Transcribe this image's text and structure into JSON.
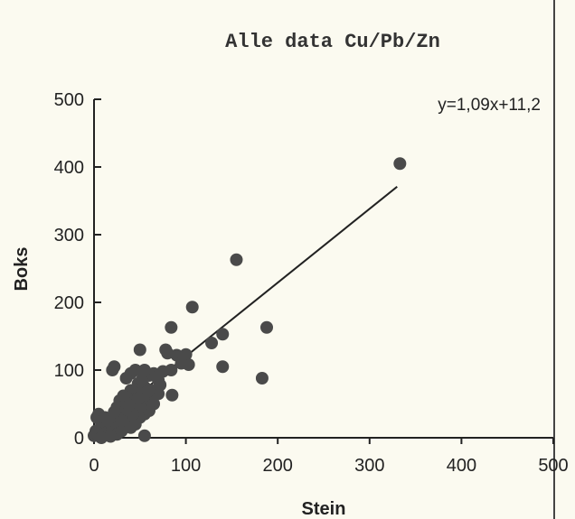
{
  "chart_data": {
    "type": "scatter",
    "title": "Alle data Cu/Pb/Zn",
    "xlabel": "Stein",
    "ylabel": "Boks",
    "xlim": [
      0,
      500
    ],
    "ylim": [
      0,
      500
    ],
    "xticks": [
      0,
      100,
      200,
      300,
      400,
      500
    ],
    "yticks": [
      0,
      100,
      200,
      300,
      400,
      500
    ],
    "grid": false,
    "annotation": "y=1,09x+11,2",
    "regression": {
      "slope": 1.09,
      "intercept": 11.2,
      "x_range": [
        0,
        330
      ]
    },
    "points": [
      [
        333,
        405
      ],
      [
        155,
        263
      ],
      [
        188,
        163
      ],
      [
        107,
        193
      ],
      [
        84,
        163
      ],
      [
        183,
        88
      ],
      [
        140,
        105
      ],
      [
        140,
        153
      ],
      [
        128,
        140
      ],
      [
        100,
        123
      ],
      [
        90,
        122
      ],
      [
        78,
        130
      ],
      [
        80,
        125
      ],
      [
        50,
        130
      ],
      [
        103,
        108
      ],
      [
        95,
        110
      ],
      [
        84,
        100
      ],
      [
        75,
        98
      ],
      [
        65,
        95
      ],
      [
        85,
        63
      ],
      [
        70,
        85
      ],
      [
        60,
        92
      ],
      [
        55,
        100
      ],
      [
        45,
        100
      ],
      [
        40,
        95
      ],
      [
        20,
        100
      ],
      [
        22,
        105
      ],
      [
        35,
        88
      ],
      [
        48,
        80
      ],
      [
        55,
        75
      ],
      [
        62,
        70
      ],
      [
        70,
        65
      ],
      [
        72,
        78
      ],
      [
        50,
        65
      ],
      [
        40,
        70
      ],
      [
        35,
        60
      ],
      [
        28,
        55
      ],
      [
        25,
        45
      ],
      [
        35,
        50
      ],
      [
        45,
        55
      ],
      [
        55,
        55
      ],
      [
        60,
        60
      ],
      [
        65,
        50
      ],
      [
        45,
        45
      ],
      [
        38,
        40
      ],
      [
        30,
        35
      ],
      [
        25,
        30
      ],
      [
        20,
        28
      ],
      [
        18,
        22
      ],
      [
        12,
        15
      ],
      [
        10,
        10
      ],
      [
        8,
        20
      ],
      [
        5,
        35
      ],
      [
        3,
        30
      ],
      [
        2,
        10
      ],
      [
        0,
        3
      ],
      [
        5,
        3
      ],
      [
        10,
        5
      ],
      [
        15,
        8
      ],
      [
        20,
        12
      ],
      [
        28,
        18
      ],
      [
        35,
        22
      ],
      [
        42,
        25
      ],
      [
        50,
        30
      ],
      [
        55,
        35
      ],
      [
        60,
        40
      ],
      [
        30,
        10
      ],
      [
        40,
        15
      ],
      [
        45,
        20
      ],
      [
        25,
        5
      ],
      [
        18,
        2
      ],
      [
        8,
        0
      ],
      [
        15,
        25
      ],
      [
        30,
        25
      ],
      [
        50,
        45
      ],
      [
        52,
        85
      ],
      [
        32,
        62
      ],
      [
        42,
        35
      ],
      [
        55,
        3
      ],
      [
        12,
        30
      ],
      [
        58,
        68
      ],
      [
        48,
        58
      ],
      [
        38,
        48
      ],
      [
        22,
        38
      ]
    ]
  }
}
